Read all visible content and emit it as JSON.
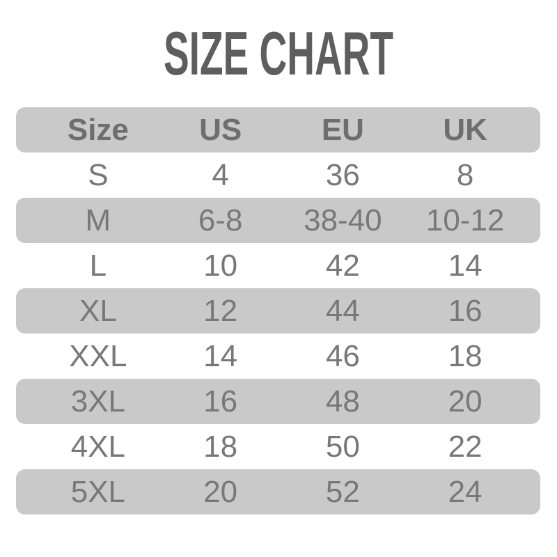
{
  "title": "SIZE CHART",
  "table": {
    "headers": [
      "Size",
      "US",
      "EU",
      "UK"
    ],
    "rows": [
      [
        "S",
        "4",
        "36",
        "8"
      ],
      [
        "M",
        "6-8",
        "38-40",
        "10-12"
      ],
      [
        "L",
        "10",
        "42",
        "14"
      ],
      [
        "XL",
        "12",
        "44",
        "16"
      ],
      [
        "XXL",
        "14",
        "46",
        "18"
      ],
      [
        "3XL",
        "16",
        "48",
        "20"
      ],
      [
        "4XL",
        "18",
        "50",
        "22"
      ],
      [
        "5XL",
        "20",
        "52",
        "24"
      ]
    ]
  },
  "colors": {
    "background": "#ffffff",
    "band": "#c9c9c9",
    "title_text": "#5e5e5e",
    "header_text": "#6e6e6e",
    "cell_text": "#78787a"
  },
  "chart_data": {
    "type": "table",
    "title": "SIZE CHART",
    "columns": [
      "Size",
      "US",
      "EU",
      "UK"
    ],
    "rows": [
      {
        "Size": "S",
        "US": "4",
        "EU": "36",
        "UK": "8"
      },
      {
        "Size": "M",
        "US": "6-8",
        "EU": "38-40",
        "UK": "10-12"
      },
      {
        "Size": "L",
        "US": "10",
        "EU": "42",
        "UK": "14"
      },
      {
        "Size": "XL",
        "US": "12",
        "EU": "44",
        "UK": "16"
      },
      {
        "Size": "XXL",
        "US": "14",
        "EU": "46",
        "UK": "18"
      },
      {
        "Size": "3XL",
        "US": "16",
        "EU": "48",
        "UK": "20"
      },
      {
        "Size": "4XL",
        "US": "18",
        "EU": "50",
        "UK": "22"
      },
      {
        "Size": "5XL",
        "US": "20",
        "EU": "52",
        "UK": "24"
      }
    ],
    "layout": {
      "header_shaded": true,
      "alternating_shaded_rows": [
        "header",
        "M",
        "XL",
        "3XL",
        "5XL"
      ],
      "row_corner_radius_px": 13,
      "columns_aligned": "center"
    }
  }
}
